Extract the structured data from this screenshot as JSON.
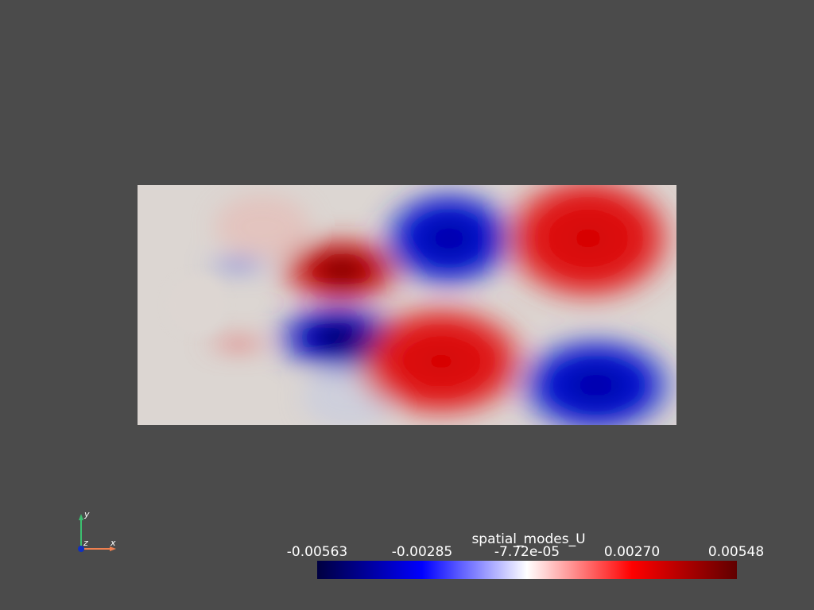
{
  "colorbar": {
    "title": "spatial_modes_U",
    "tick_labels": [
      "-0.00563",
      "-0.00285",
      "-7.72e-05",
      "0.00270",
      "0.00548"
    ]
  },
  "axes": {
    "y": "y",
    "z": "z",
    "x": "x"
  }
}
